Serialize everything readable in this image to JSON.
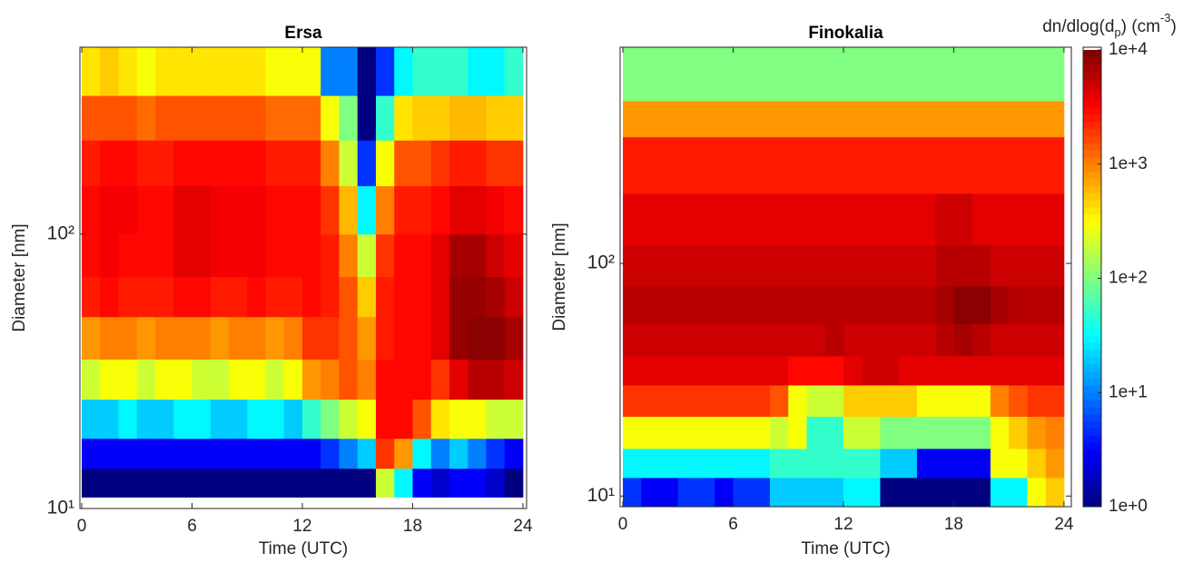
{
  "chart_data": [
    {
      "type": "heatmap",
      "title": "Ersa",
      "xlabel": "Time (UTC)",
      "ylabel": "Diameter [nm]",
      "x_edges": [
        0,
        1,
        2,
        3,
        4,
        5,
        6,
        7,
        8,
        9,
        10,
        11,
        12,
        13,
        14,
        15,
        16,
        17,
        18,
        19,
        20,
        21,
        22,
        23,
        24
      ],
      "y_edges": [
        11,
        14,
        18,
        25,
        35,
        50,
        70,
        100,
        150,
        220,
        320,
        480
      ],
      "z": [
        [
          1,
          1,
          1,
          1,
          1,
          1,
          1,
          1,
          1,
          1,
          1,
          1,
          1,
          1,
          1,
          1,
          200,
          30,
          3,
          2,
          3,
          3,
          2,
          1
        ],
        [
          3,
          3,
          3,
          3,
          3,
          3,
          3,
          3,
          3,
          3,
          3,
          3,
          3,
          5,
          10,
          20,
          2000,
          800,
          30,
          10,
          20,
          10,
          5,
          3
        ],
        [
          20,
          20,
          30,
          20,
          20,
          30,
          30,
          20,
          20,
          30,
          30,
          20,
          50,
          100,
          200,
          300,
          3000,
          3000,
          1500,
          400,
          300,
          300,
          200,
          200
        ],
        [
          200,
          300,
          300,
          200,
          300,
          300,
          200,
          200,
          300,
          300,
          200,
          300,
          800,
          1000,
          1500,
          1000,
          3000,
          3000,
          3000,
          2000,
          4000,
          6000,
          6000,
          5000
        ],
        [
          800,
          1000,
          1000,
          800,
          1000,
          1000,
          1000,
          800,
          1000,
          1000,
          800,
          1000,
          2000,
          2000,
          1500,
          800,
          2500,
          3000,
          3000,
          4000,
          8000,
          9000,
          9000,
          7000
        ],
        [
          2500,
          3000,
          2500,
          2500,
          2500,
          3000,
          3000,
          2500,
          2500,
          3000,
          2500,
          2500,
          3000,
          2500,
          1500,
          500,
          2500,
          3000,
          3000,
          4000,
          8000,
          8000,
          7000,
          5000
        ],
        [
          3000,
          3500,
          3000,
          3000,
          3000,
          4000,
          4000,
          3500,
          3500,
          3500,
          3000,
          3000,
          3000,
          2500,
          1000,
          200,
          2000,
          3000,
          3000,
          4000,
          7000,
          7000,
          5000,
          4000
        ],
        [
          3000,
          3500,
          3500,
          3000,
          3000,
          4000,
          4000,
          3500,
          3500,
          3500,
          3000,
          3000,
          3000,
          2000,
          600,
          30,
          1000,
          2500,
          2500,
          3000,
          4000,
          4000,
          3500,
          3000
        ],
        [
          2500,
          3000,
          3000,
          2500,
          2500,
          3000,
          3000,
          3000,
          3000,
          3000,
          2500,
          2500,
          2500,
          1000,
          200,
          5,
          300,
          1500,
          1500,
          2000,
          2500,
          2500,
          2000,
          2000
        ],
        [
          1500,
          1500,
          1500,
          1200,
          1500,
          1500,
          1500,
          1500,
          1500,
          1500,
          1200,
          1200,
          1200,
          300,
          100,
          1,
          50,
          400,
          500,
          500,
          600,
          600,
          500,
          500
        ],
        [
          400,
          500,
          400,
          300,
          400,
          400,
          400,
          400,
          400,
          400,
          300,
          300,
          300,
          10,
          10,
          1,
          5,
          30,
          50,
          50,
          50,
          30,
          30,
          50
        ]
      ],
      "xlim": [
        -0.1,
        24.2
      ],
      "xticks": [
        0,
        6,
        12,
        18,
        24
      ],
      "ylim": [
        10,
        480
      ],
      "ylog": true,
      "yticks": [
        {
          "value": 10,
          "label": "10¹"
        },
        {
          "value": 100,
          "label": "10²"
        }
      ]
    },
    {
      "type": "heatmap",
      "title": "Finokalia",
      "xlabel": "Time (UTC)",
      "ylabel": "Diameter [nm]",
      "x_edges": [
        0,
        1,
        2,
        3,
        4,
        5,
        6,
        7,
        8,
        9,
        10,
        11,
        12,
        13,
        14,
        15,
        16,
        17,
        18,
        19,
        20,
        21,
        22,
        23,
        24
      ],
      "y_edges": [
        9,
        12,
        16,
        22,
        30,
        40,
        55,
        80,
        120,
        200,
        350,
        500,
        850
      ],
      "z": [
        [
          5,
          3,
          3,
          5,
          5,
          3,
          5,
          5,
          20,
          20,
          20,
          20,
          30,
          30,
          1,
          1,
          1,
          1,
          1,
          1,
          30,
          30,
          300,
          500
        ],
        [
          30,
          30,
          30,
          30,
          30,
          30,
          30,
          30,
          50,
          50,
          50,
          50,
          50,
          50,
          20,
          20,
          3,
          3,
          3,
          3,
          300,
          300,
          500,
          800
        ],
        [
          300,
          300,
          300,
          300,
          300,
          300,
          300,
          300,
          200,
          300,
          50,
          50,
          200,
          200,
          100,
          100,
          100,
          100,
          100,
          100,
          300,
          500,
          800,
          1000
        ],
        [
          2000,
          2000,
          2000,
          2000,
          2000,
          2000,
          2000,
          2000,
          1500,
          300,
          200,
          200,
          500,
          500,
          500,
          500,
          300,
          300,
          300,
          300,
          1000,
          1500,
          2000,
          2000
        ],
        [
          4000,
          4000,
          4000,
          4000,
          4000,
          4000,
          4000,
          4000,
          4000,
          3000,
          3000,
          3000,
          4000,
          5000,
          5000,
          4000,
          4000,
          4000,
          4000,
          4000,
          4000,
          4000,
          4000,
          4000
        ],
        [
          5000,
          5000,
          5000,
          5000,
          5000,
          5000,
          5000,
          5000,
          5000,
          5000,
          5000,
          6000,
          5000,
          5000,
          5000,
          5000,
          5000,
          6000,
          7000,
          6000,
          5000,
          5000,
          5000,
          5000
        ],
        [
          6000,
          6000,
          6000,
          6000,
          6000,
          6000,
          6000,
          6000,
          6000,
          6000,
          6000,
          6000,
          6000,
          6000,
          6000,
          6000,
          6000,
          7000,
          9000,
          9000,
          7000,
          6000,
          6000,
          6000
        ],
        [
          5000,
          5000,
          5000,
          5000,
          5000,
          5000,
          5000,
          5000,
          5000,
          5000,
          5000,
          5000,
          5000,
          5000,
          5000,
          5000,
          5000,
          6000,
          6000,
          6000,
          5000,
          5000,
          5000,
          5000
        ],
        [
          4000,
          4000,
          4000,
          4000,
          4000,
          4000,
          4000,
          4000,
          4000,
          4000,
          4000,
          4000,
          4000,
          4000,
          4000,
          4000,
          4000,
          5000,
          5000,
          4000,
          4000,
          4000,
          4000,
          4000
        ],
        [
          2500,
          2500,
          2500,
          2500,
          2500,
          2500,
          2500,
          2500,
          2500,
          2500,
          2500,
          2500,
          2500,
          2500,
          2500,
          2500,
          2500,
          2500,
          2500,
          2500,
          2500,
          2500,
          2500,
          2500
        ],
        [
          800,
          800,
          800,
          800,
          800,
          800,
          800,
          800,
          800,
          800,
          800,
          800,
          800,
          800,
          800,
          800,
          800,
          800,
          800,
          800,
          800,
          800,
          800,
          800
        ],
        [
          100,
          100,
          100,
          100,
          100,
          100,
          100,
          100,
          100,
          100,
          100,
          100,
          100,
          100,
          100,
          100,
          100,
          100,
          100,
          100,
          100,
          100,
          100,
          100
        ]
      ],
      "xlim": [
        -0.15,
        24.4
      ],
      "xticks": [
        0,
        6,
        12,
        18,
        24
      ],
      "ylim": [
        9,
        850
      ],
      "ylog": true,
      "yticks": [
        {
          "value": 10,
          "label": "10¹"
        },
        {
          "value": 100,
          "label": "10²"
        }
      ]
    }
  ],
  "colorbar": {
    "label": [
      "dn/dlog(d",
      "p",
      ") (cm",
      "-3",
      ")"
    ],
    "colormap": "jet",
    "log": true,
    "clim": [
      1,
      10000
    ],
    "ticks": [
      {
        "value": 1,
        "label": "1e+0"
      },
      {
        "value": 10,
        "label": "1e+1"
      },
      {
        "value": 100,
        "label": "1e+2"
      },
      {
        "value": 1000,
        "label": "1e+3"
      },
      {
        "value": 10000,
        "label": "1e+4"
      }
    ]
  }
}
